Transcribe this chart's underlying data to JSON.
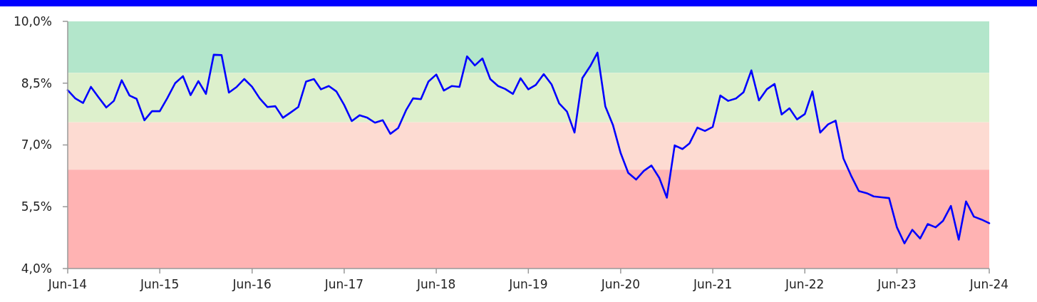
{
  "chart_data": {
    "type": "line",
    "x": [
      "2014-06",
      "2014-07",
      "2014-08",
      "2014-09",
      "2014-10",
      "2014-11",
      "2014-12",
      "2015-01",
      "2015-02",
      "2015-03",
      "2015-04",
      "2015-05",
      "2015-06",
      "2015-07",
      "2015-08",
      "2015-09",
      "2015-10",
      "2015-11",
      "2015-12",
      "2016-01",
      "2016-02",
      "2016-03",
      "2016-04",
      "2016-05",
      "2016-06",
      "2016-07",
      "2016-08",
      "2016-09",
      "2016-10",
      "2016-11",
      "2016-12",
      "2017-01",
      "2017-02",
      "2017-03",
      "2017-04",
      "2017-05",
      "2017-06",
      "2017-07",
      "2017-08",
      "2017-09",
      "2017-10",
      "2017-11",
      "2017-12",
      "2018-01",
      "2018-02",
      "2018-03",
      "2018-04",
      "2018-05",
      "2018-06",
      "2018-07",
      "2018-08",
      "2018-09",
      "2018-10",
      "2018-11",
      "2018-12",
      "2019-01",
      "2019-02",
      "2019-03",
      "2019-04",
      "2019-05",
      "2019-06",
      "2019-07",
      "2019-08",
      "2019-09",
      "2019-10",
      "2019-11",
      "2019-12",
      "2020-01",
      "2020-02",
      "2020-03",
      "2020-04",
      "2020-05",
      "2020-06",
      "2020-07",
      "2020-08",
      "2020-09",
      "2020-10",
      "2020-11",
      "2020-12",
      "2021-01",
      "2021-02",
      "2021-03",
      "2021-04",
      "2021-05",
      "2021-06",
      "2021-07",
      "2021-08",
      "2021-09",
      "2021-10",
      "2021-11",
      "2021-12",
      "2022-01",
      "2022-02",
      "2022-03",
      "2022-04",
      "2022-05",
      "2022-06",
      "2022-07",
      "2022-08",
      "2022-09",
      "2022-10",
      "2022-11",
      "2022-12",
      "2023-01",
      "2023-02",
      "2023-03",
      "2023-04",
      "2023-05",
      "2023-06",
      "2023-07",
      "2023-08",
      "2023-09",
      "2023-10",
      "2023-11",
      "2023-12",
      "2024-01",
      "2024-02",
      "2024-03",
      "2024-04",
      "2024-05",
      "2024-06"
    ],
    "series": [
      {
        "color": "#0000ff",
        "values": [
          8.33,
          8.13,
          8.02,
          8.41,
          8.16,
          7.91,
          8.07,
          8.57,
          8.2,
          8.12,
          7.6,
          7.82,
          7.82,
          8.14,
          8.5,
          8.67,
          8.21,
          8.55,
          8.24,
          9.19,
          9.18,
          8.27,
          8.41,
          8.6,
          8.41,
          8.13,
          7.92,
          7.94,
          7.66,
          7.79,
          7.92,
          8.54,
          8.6,
          8.35,
          8.43,
          8.3,
          7.97,
          7.58,
          7.72,
          7.66,
          7.54,
          7.6,
          7.27,
          7.41,
          7.84,
          8.13,
          8.11,
          8.54,
          8.71,
          8.32,
          8.43,
          8.41,
          9.15,
          8.93,
          9.1,
          8.6,
          8.43,
          8.36,
          8.24,
          8.62,
          8.35,
          8.46,
          8.72,
          8.47,
          8.01,
          7.81,
          7.3,
          8.62,
          8.91,
          9.24,
          7.94,
          7.49,
          6.8,
          6.32,
          6.16,
          6.37,
          6.5,
          6.2,
          5.72,
          6.99,
          6.9,
          7.04,
          7.42,
          7.34,
          7.44,
          8.2,
          8.07,
          8.13,
          8.28,
          8.81,
          8.08,
          8.35,
          8.48,
          7.74,
          7.89,
          7.62,
          7.75,
          8.3,
          7.3,
          7.5,
          7.59,
          6.67,
          6.26,
          5.88,
          5.83,
          5.75,
          5.73,
          5.71,
          5.0,
          4.61,
          4.94,
          4.73,
          5.08,
          5.0,
          5.16,
          5.52,
          4.7,
          5.63,
          5.26,
          5.19,
          5.1
        ]
      }
    ],
    "xlim": [
      "2014-06",
      "2024-06"
    ],
    "xticks": [
      {
        "value": "2014-06",
        "label": "Jun-14"
      },
      {
        "value": "2015-06",
        "label": "Jun-15"
      },
      {
        "value": "2016-06",
        "label": "Jun-16"
      },
      {
        "value": "2017-06",
        "label": "Jun-17"
      },
      {
        "value": "2018-06",
        "label": "Jun-18"
      },
      {
        "value": "2019-06",
        "label": "Jun-19"
      },
      {
        "value": "2020-06",
        "label": "Jun-20"
      },
      {
        "value": "2021-06",
        "label": "Jun-21"
      },
      {
        "value": "2022-06",
        "label": "Jun-22"
      },
      {
        "value": "2023-06",
        "label": "Jun-23"
      },
      {
        "value": "2024-06",
        "label": "Jun-24"
      }
    ],
    "ylim": [
      4,
      10
    ],
    "yticks": [
      {
        "value": 4,
        "label": "4,0%"
      },
      {
        "value": 5.5,
        "label": "5,5%"
      },
      {
        "value": 7,
        "label": "7,0%"
      },
      {
        "value": 8.5,
        "label": "8,5%"
      },
      {
        "value": 10,
        "label": "10,0%"
      }
    ],
    "bands": [
      {
        "axis": "y",
        "from": 8.75,
        "to": 10,
        "color": "#b3e6cb"
      },
      {
        "axis": "y",
        "from": 7.55,
        "to": 8.75,
        "color": "#ddf0cc"
      },
      {
        "axis": "y",
        "from": 6.4,
        "to": 7.55,
        "color": "#fddbd2"
      },
      {
        "axis": "y",
        "from": 4,
        "to": 6.4,
        "color": "#ffb3b3"
      }
    ],
    "grid": false,
    "marker": "none",
    "line_style": "solid"
  }
}
